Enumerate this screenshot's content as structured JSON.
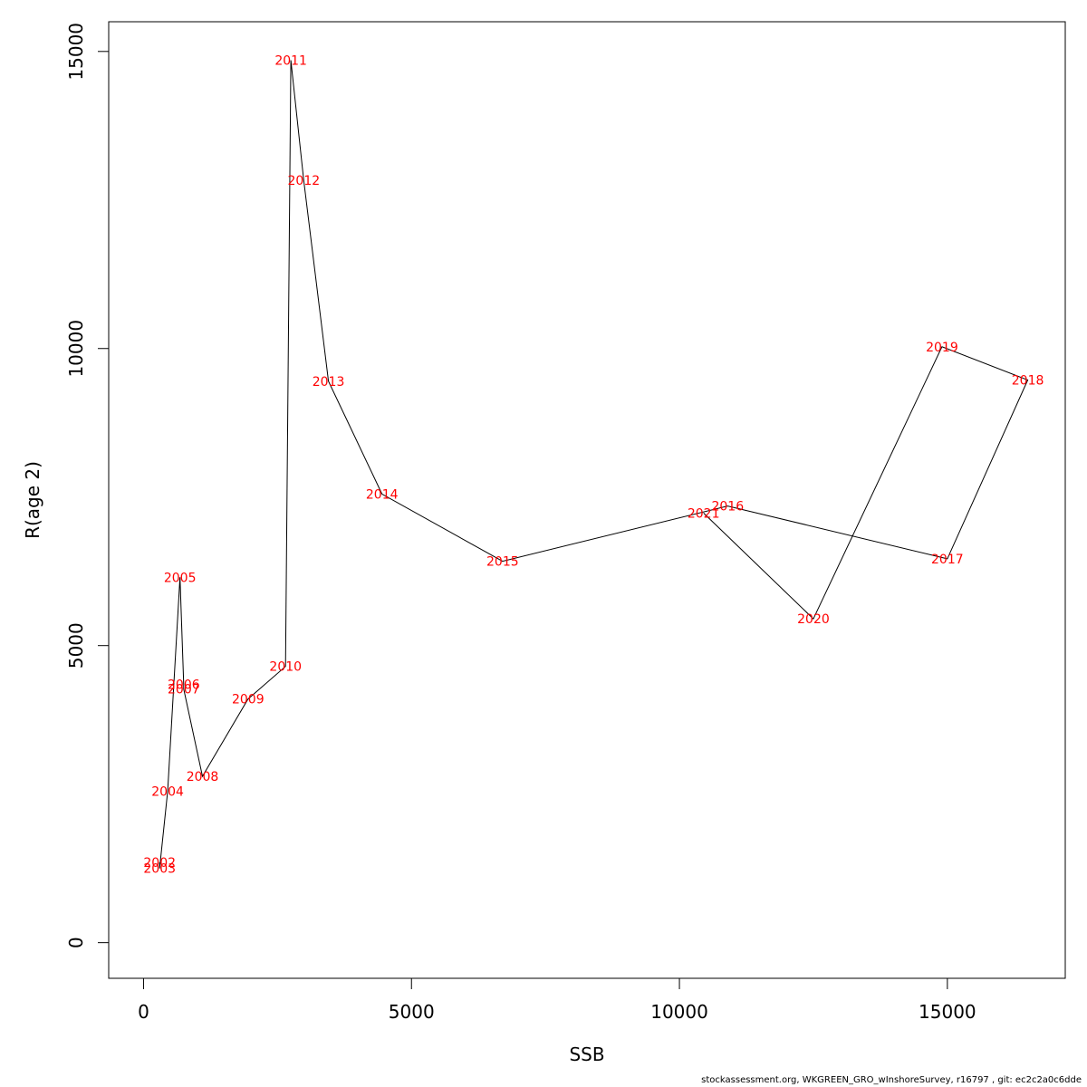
{
  "chart_data": {
    "type": "line",
    "xlabel": "SSB",
    "ylabel": "R(age 2)",
    "xlim": [
      -650,
      17200
    ],
    "ylim": [
      -600,
      15500
    ],
    "x_ticks": [
      0,
      5000,
      10000,
      15000
    ],
    "y_ticks": [
      0,
      5000,
      10000,
      15000
    ],
    "grid": false,
    "line_color": "#000000",
    "label_color": "#ff0000",
    "series": [
      {
        "points": [
          {
            "label": "2002",
            "x": 300,
            "y": 1350
          },
          {
            "label": "2003",
            "x": 300,
            "y": 1250
          },
          {
            "label": "2004",
            "x": 450,
            "y": 2550
          },
          {
            "label": "2005",
            "x": 680,
            "y": 6150
          },
          {
            "label": "2006",
            "x": 750,
            "y": 4350
          },
          {
            "label": "2007",
            "x": 750,
            "y": 4270
          },
          {
            "label": "2008",
            "x": 1100,
            "y": 2800
          },
          {
            "label": "2009",
            "x": 1950,
            "y": 4100
          },
          {
            "label": "2010",
            "x": 2650,
            "y": 4650
          },
          {
            "label": "2011",
            "x": 2750,
            "y": 14850
          },
          {
            "label": "2012",
            "x": 2990,
            "y": 12830
          },
          {
            "label": "2013",
            "x": 3450,
            "y": 9450
          },
          {
            "label": "2014",
            "x": 4450,
            "y": 7550
          },
          {
            "label": "2015",
            "x": 6700,
            "y": 6420
          },
          {
            "label": "2016",
            "x": 10900,
            "y": 7350
          },
          {
            "label": "2017",
            "x": 15000,
            "y": 6460
          },
          {
            "label": "2018",
            "x": 16500,
            "y": 9470
          },
          {
            "label": "2019",
            "x": 14900,
            "y": 10030
          },
          {
            "label": "2020",
            "x": 12500,
            "y": 5450
          },
          {
            "label": "2021",
            "x": 10450,
            "y": 7230
          }
        ]
      }
    ]
  },
  "footer": "stockassessment.org, WKGREEN_GRO_wInshoreSurvey, r16797 , git: ec2c2a0c6dde"
}
